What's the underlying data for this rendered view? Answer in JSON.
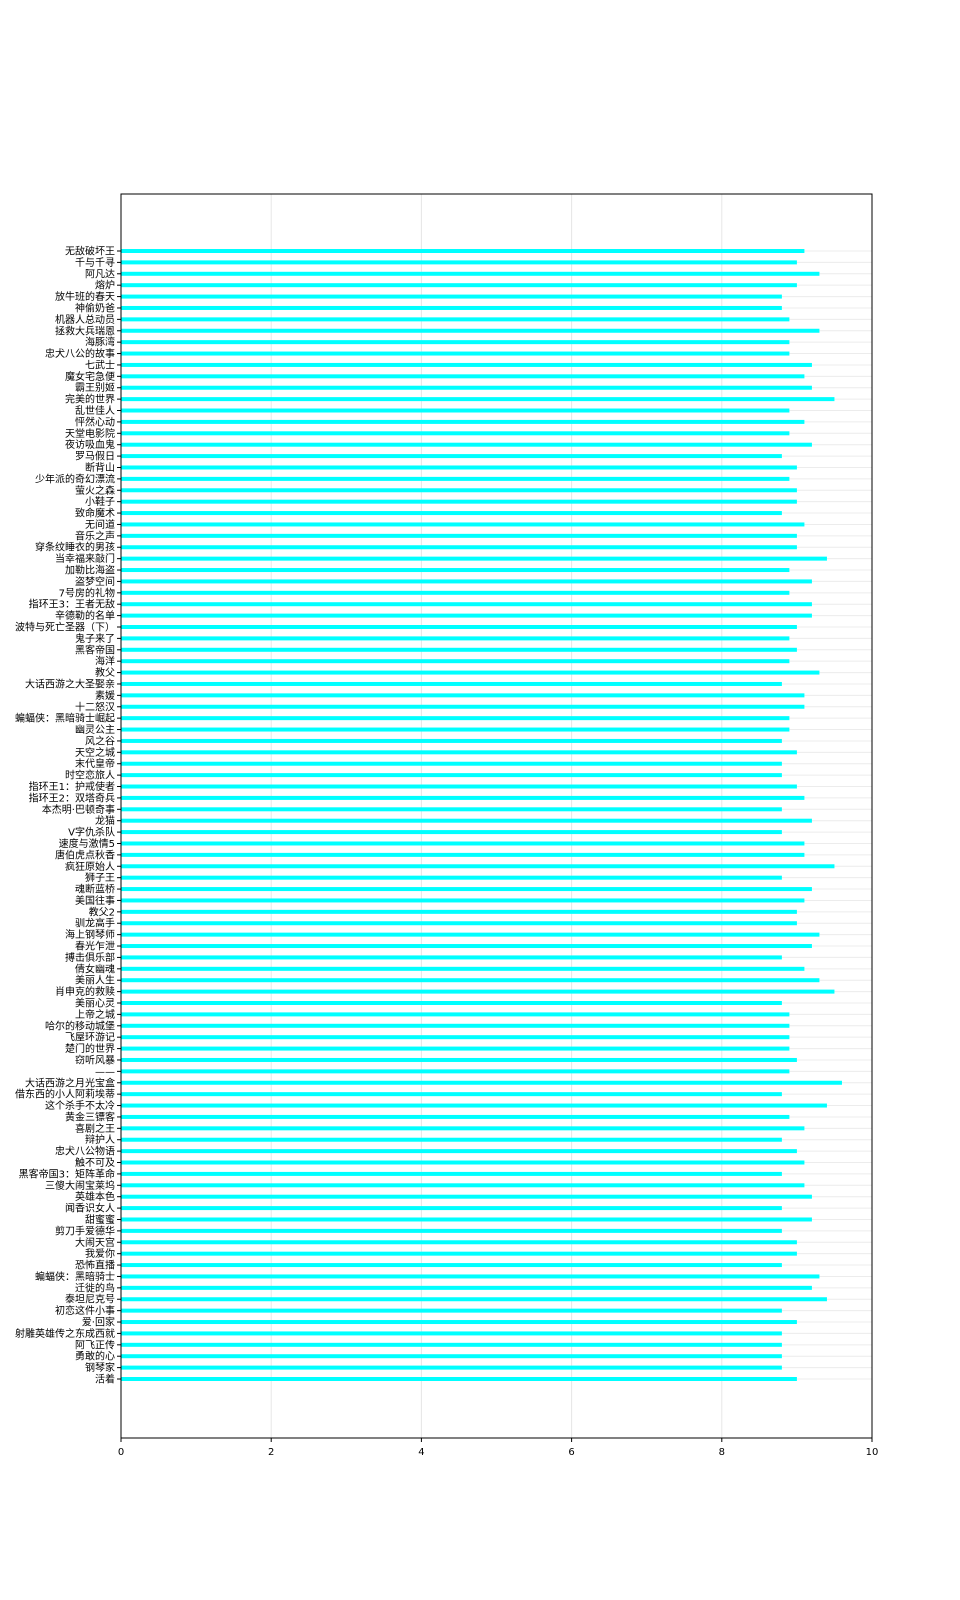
{
  "chart_data": {
    "type": "bar",
    "orientation": "horizontal",
    "bar_color": "#00ffff",
    "grid": true,
    "xlim": [
      0,
      10
    ],
    "x_ticks": [
      0,
      2,
      4,
      6,
      8,
      10
    ],
    "title": "",
    "xlabel": "",
    "ylabel": "",
    "categories": [
      "无敌破坏王",
      "千与千寻",
      "阿凡达",
      "熔炉",
      "放牛班的春天",
      "神偷奶爸",
      "机器人总动员",
      "拯救大兵瑞恩",
      "海豚湾",
      "忠犬八公的故事",
      "七武士",
      "魔女宅急便",
      "霸王别姬",
      "完美的世界",
      "乱世佳人",
      "怦然心动",
      "天堂电影院",
      "夜访吸血鬼",
      "罗马假日",
      "断背山",
      "少年派的奇幻漂流",
      "萤火之森",
      "小鞋子",
      "致命魔术",
      "无间道",
      "音乐之声",
      "穿条纹睡衣的男孩",
      "当幸福来敲门",
      "加勒比海盗",
      "盗梦空间",
      "7号房的礼物",
      "指环王3：王者无敌",
      "辛德勒的名单",
      "波特与死亡圣器（下）",
      "鬼子来了",
      "黑客帝国",
      "海洋",
      "教父",
      "大话西游之大圣娶亲",
      "素媛",
      "十二怒汉",
      "蝙蝠侠：黑暗骑士崛起",
      "幽灵公主",
      "风之谷",
      "天空之城",
      "末代皇帝",
      "时空恋旅人",
      "指环王1：护戒使者",
      "指环王2：双塔奇兵",
      "本杰明·巴顿奇事",
      "龙猫",
      "V字仇杀队",
      "速度与激情5",
      "唐伯虎点秋香",
      "疯狂原始人",
      "狮子王",
      "魂断蓝桥",
      "美国往事",
      "教父2",
      "驯龙高手",
      "海上钢琴师",
      "春光乍泄",
      "搏击俱乐部",
      "倩女幽魂",
      "美丽人生",
      "肖申克的救赎",
      "美丽心灵",
      "上帝之城",
      "哈尔的移动城堡",
      "飞屋环游记",
      "楚门的世界",
      "窃听风暴",
      "——",
      "大话西游之月光宝盒",
      "借东西的小人阿莉埃蒂",
      "这个杀手不太冷",
      "黄金三镖客",
      "喜剧之王",
      "辩护人",
      "忠犬八公物语",
      "触不可及",
      "黑客帝国3：矩阵革命",
      "三傻大闹宝莱坞",
      "英雄本色",
      "闻香识女人",
      "甜蜜蜜",
      "剪刀手爱德华",
      "大闹天宫",
      "我爱你",
      "恐怖直播",
      "蝙蝠侠：黑暗骑士",
      "迁徙的鸟",
      "泰坦尼克号",
      "初恋这件小事",
      "爱·回家",
      "射雕英雄传之东成西就",
      "阿飞正传",
      "勇敢的心",
      "钢琴家",
      "活着"
    ],
    "values": [
      9.1,
      9.0,
      9.3,
      9.0,
      8.8,
      8.8,
      8.9,
      9.3,
      8.9,
      8.9,
      9.2,
      9.1,
      9.2,
      9.5,
      8.9,
      9.1,
      8.9,
      9.2,
      8.8,
      9.0,
      8.9,
      9.0,
      9.0,
      8.8,
      9.1,
      9.0,
      9.0,
      9.4,
      8.9,
      9.2,
      8.9,
      9.2,
      9.2,
      9.0,
      8.9,
      9.0,
      8.9,
      9.3,
      8.8,
      9.1,
      9.1,
      8.9,
      8.9,
      8.8,
      9.0,
      8.8,
      8.8,
      9.0,
      9.1,
      8.8,
      9.2,
      8.8,
      9.1,
      9.1,
      9.5,
      8.8,
      9.2,
      9.1,
      9.0,
      9.0,
      9.3,
      9.2,
      8.8,
      9.1,
      9.3,
      9.5,
      8.8,
      8.9,
      8.9,
      8.9,
      8.9,
      9.0,
      8.9,
      9.6,
      8.8,
      9.4,
      8.9,
      9.1,
      8.8,
      9.0,
      9.1,
      8.8,
      9.1,
      9.2,
      8.8,
      9.2,
      8.8,
      9.0,
      9.0,
      8.8,
      9.3,
      9.2,
      9.4,
      8.8,
      9.0,
      8.8,
      8.8,
      8.8,
      8.8,
      9.0
    ]
  }
}
